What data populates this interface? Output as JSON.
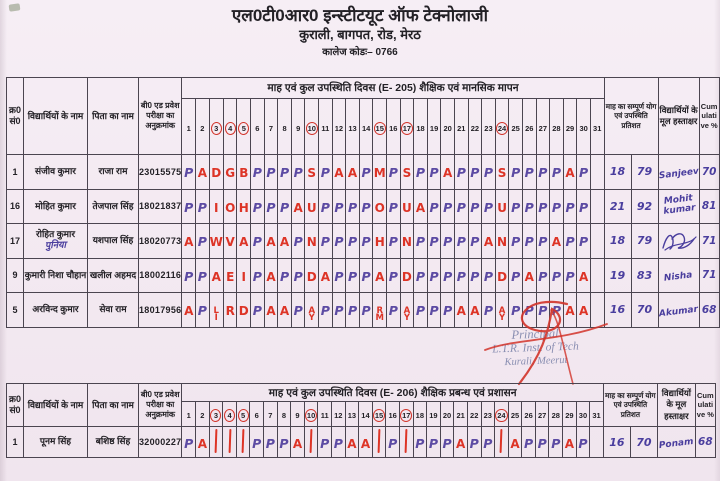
{
  "page": {
    "title_line1": "एल0टी0आर0 इन्स्टीटयूट ऑफ टेक्नोलाजी",
    "title_line2": "कुराली, बागपत, रोड, मेरठ",
    "title_line3": "कालेज कोडः– 0766"
  },
  "stamp": {
    "line1": "Principal",
    "line2": "L.T.R. Inst. of Tech",
    "line3": "Kurali, Meerut"
  },
  "colors": {
    "paper": "#f3e9f1",
    "text": "#232126",
    "table_line": "#4b4550",
    "ink_present": "#5c4ba3",
    "ink_absent": "#dd3426",
    "ink_hand": "#4a3e9e",
    "stamp_text": "#7f86ac",
    "red_mark": "#d2342a"
  },
  "columns": {
    "serial_l1": "क्र0",
    "serial_l2": "सं0",
    "name": "विद्यार्थियों के नाम",
    "father": "पिता का नाम",
    "roll": "बी0 एड प्रवेश परीक्षा का अनुक्रमांक",
    "total": "माह का सम्पूर्ण योग एवं उपस्थिति प्रतिशत",
    "signature": "विद्यार्थियों के मूल हस्ताक्षर",
    "cumulative": "Cumulative %"
  },
  "days": [
    1,
    2,
    3,
    4,
    5,
    6,
    7,
    8,
    9,
    10,
    11,
    12,
    13,
    14,
    15,
    16,
    17,
    18,
    19,
    20,
    21,
    22,
    23,
    24,
    25,
    26,
    27,
    28,
    29,
    30,
    31
  ],
  "circled_days": [
    3,
    4,
    5,
    10,
    15,
    17,
    24
  ],
  "tables": [
    {
      "header_title": "माह एवं कुल उपस्थिति दिवस (E- 205)  शैक्षिक एवं मानसिक मापन",
      "rows": [
        {
          "sr": "1",
          "name": "संजीव कुमार",
          "name2": "",
          "father": "राजा राम",
          "roll": "23015575",
          "att": [
            "P",
            "A",
            "D",
            "G",
            "B",
            "P",
            "P",
            "P",
            "P",
            "S",
            "P",
            "A",
            "A",
            "P",
            "M",
            "P",
            "S",
            "P",
            "P",
            "A",
            "P",
            "P",
            "P",
            "S",
            "P",
            "P",
            "P",
            "P",
            "A",
            "P",
            ""
          ],
          "total_days": "18",
          "percent": "79",
          "signature": "Sanjeev",
          "scribble": false,
          "cumulative": "70"
        },
        {
          "sr": "16",
          "name": "मोहित कुमार",
          "name2": "",
          "father": "तेजपाल सिंह",
          "roll": "18021837",
          "att": [
            "P",
            "P",
            "I",
            "O",
            "H",
            "P",
            "P",
            "P",
            "A",
            "U",
            "P",
            "P",
            "P",
            "P",
            "O",
            "P",
            "U",
            "A",
            "P",
            "P",
            "P",
            "P",
            "P",
            "U",
            "P",
            "P",
            "P",
            "P",
            "P",
            "P",
            ""
          ],
          "total_days": "21",
          "percent": "92",
          "signature": "Mohit kumar",
          "scribble": false,
          "cumulative": "81"
        },
        {
          "sr": "17",
          "name": "रोहित कुमार",
          "name2": "पुनिया",
          "father": "यशपाल सिंह",
          "roll": "18020773",
          "att": [
            "A",
            "P",
            "W",
            "V",
            "A",
            "P",
            "A",
            "A",
            "P",
            "N",
            "P",
            "P",
            "P",
            "P",
            "H",
            "P",
            "N",
            "P",
            "P",
            "P",
            "P",
            "P",
            "A",
            "N",
            "P",
            "P",
            "P",
            "A",
            "P",
            "P",
            ""
          ],
          "total_days": "18",
          "percent": "79",
          "signature": "",
          "scribble": true,
          "cumulative": "71"
        },
        {
          "sr": "9",
          "name": "कुमारी निशा चौहान",
          "name2": "",
          "father": "खलील अहमद",
          "roll": "18002116",
          "att": [
            "P",
            "P",
            "A",
            "E",
            "I",
            "P",
            "A",
            "P",
            "P",
            "D",
            "A",
            "P",
            "P",
            "P",
            "A",
            "P",
            "D",
            "P",
            "P",
            "P",
            "P",
            "P",
            "P",
            "D",
            "P",
            "A",
            "P",
            "P",
            "P",
            "A",
            ""
          ],
          "total_days": "19",
          "percent": "83",
          "signature": "Nisha",
          "scribble": false,
          "cumulative": "71"
        },
        {
          "sr": "5",
          "name": "अरविन्द कुमार",
          "name2": "",
          "father": "सेवा राम",
          "roll": "18017956",
          "att": [
            "A",
            "P",
            "LI",
            "R",
            "D",
            "P",
            "A",
            "A",
            "P",
            "AY",
            "P",
            "P",
            "P",
            "P",
            "RM",
            "P",
            "AY",
            "P",
            "P",
            "P",
            "A",
            "A",
            "P",
            "AY",
            "P",
            "P",
            "P",
            "P",
            "A",
            "A",
            ""
          ],
          "total_days": "16",
          "percent": "70",
          "signature": "Akumar",
          "scribble": false,
          "cumulative": "68"
        }
      ]
    },
    {
      "header_title": "माह एवं कुल उपस्थिति दिवस (E- 206)  शैक्षिक प्रबन्ध एवं प्रशासन",
      "rows": [
        {
          "sr": "1",
          "name": "पूनम सिंह",
          "name2": "",
          "father": "बशिष्ठ सिंह",
          "roll": "32000227",
          "att": [
            "P",
            "A",
            "|",
            "|",
            "|",
            "P",
            "P",
            "P",
            "A",
            "|",
            "P",
            "P",
            "A",
            "A",
            "|",
            "P",
            "|",
            "P",
            "P",
            "P",
            "A",
            "P",
            "P",
            "|",
            "A",
            "P",
            "P",
            "P",
            "A",
            "P",
            ""
          ],
          "total_days": "16",
          "percent": "70",
          "signature": "Ponam",
          "scribble": false,
          "cumulative": "68"
        }
      ]
    }
  ]
}
